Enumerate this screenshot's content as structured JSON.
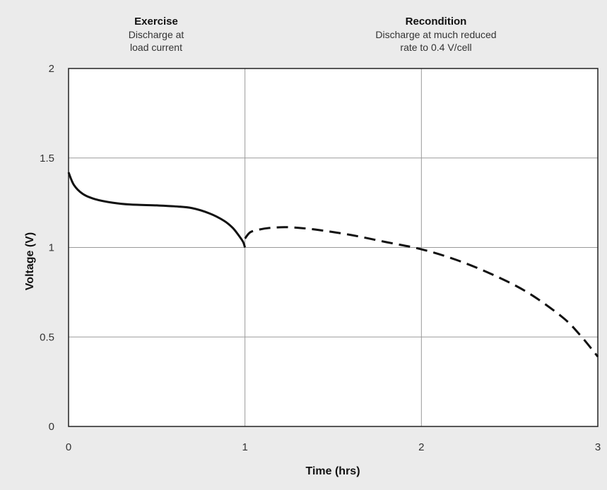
{
  "chart_data": {
    "type": "line",
    "xlabel": "Time (hrs)",
    "ylabel": "Voltage (V)",
    "xlim": [
      0,
      3
    ],
    "ylim": [
      0,
      2
    ],
    "x_ticks": [
      "0",
      "1",
      "2",
      "3"
    ],
    "y_ticks": [
      "0",
      "0.5",
      "1",
      "1.5",
      "2"
    ],
    "grid": true,
    "annotations": [
      {
        "title": "Exercise",
        "lines": [
          "Discharge at",
          "load current"
        ]
      },
      {
        "title": "Recondition",
        "lines": [
          "Discharge at much reduced",
          "rate to 0.4 V/cell"
        ]
      }
    ],
    "series": [
      {
        "style": "solid",
        "color": "#111111",
        "x": [
          0,
          0.03,
          0.08,
          0.15,
          0.25,
          0.35,
          0.5,
          0.6,
          0.7,
          0.8,
          0.88,
          0.93,
          0.97,
          0.99,
          1.0
        ],
        "y": [
          1.42,
          1.35,
          1.3,
          1.27,
          1.25,
          1.24,
          1.235,
          1.23,
          1.22,
          1.19,
          1.15,
          1.11,
          1.06,
          1.03,
          1.0
        ]
      },
      {
        "style": "dashed",
        "color": "#111111",
        "x": [
          1.0,
          1.03,
          1.08,
          1.15,
          1.25,
          1.4,
          1.6,
          1.8,
          2.0,
          2.2,
          2.4,
          2.6,
          2.8,
          2.9,
          3.0
        ],
        "y": [
          1.05,
          1.085,
          1.1,
          1.11,
          1.113,
          1.1,
          1.07,
          1.03,
          0.99,
          0.93,
          0.85,
          0.75,
          0.61,
          0.51,
          0.39
        ]
      }
    ]
  }
}
